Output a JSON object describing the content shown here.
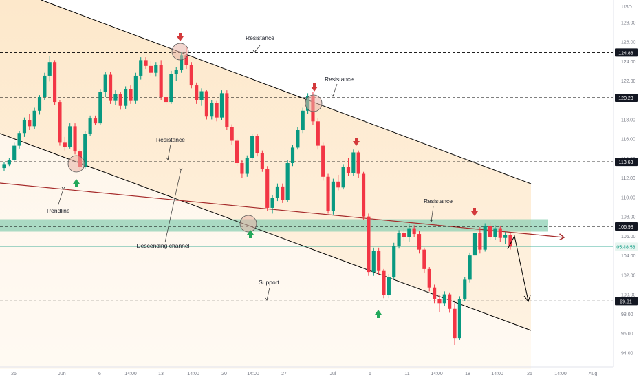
{
  "chart_data": {
    "type": "candlestick",
    "currency": "USD",
    "y_ticks": [
      94,
      96,
      98,
      100,
      102,
      104,
      106,
      108,
      110,
      112,
      114,
      116,
      118,
      120,
      122,
      124,
      126,
      128
    ],
    "x_ticks": [
      "26",
      "Jun",
      "6",
      "14:00",
      "13",
      "14:00",
      "20",
      "14:00",
      "27",
      "Jul",
      "6",
      "11",
      "14:00",
      "18",
      "14:00",
      "25",
      "14:00",
      "Aug"
    ],
    "price_tags": [
      {
        "label": "124.88",
        "value": 124.88,
        "style": "dark"
      },
      {
        "label": "120.23",
        "value": 120.23,
        "style": "dark"
      },
      {
        "label": "113.63",
        "value": 113.63,
        "style": "dark"
      },
      {
        "label": "106.98",
        "value": 106.98,
        "style": "dark"
      },
      {
        "label": "99.31",
        "value": 99.31,
        "style": "dark"
      },
      {
        "label": "05:48:58",
        "value": 104.9,
        "style": "last"
      }
    ],
    "horizontal_levels": [
      124.88,
      120.23,
      113.63,
      106.98,
      99.31
    ],
    "annotations": [
      "Resistance",
      "Resistance",
      "Resistance",
      "Resistance",
      "Trendline",
      "Descending channel",
      "Support"
    ],
    "candles": [
      [
        113.0,
        113.6,
        112.7,
        113.4
      ],
      [
        113.4,
        114.0,
        113.2,
        113.8
      ],
      [
        113.8,
        115.6,
        113.6,
        115.3
      ],
      [
        115.3,
        116.8,
        115.0,
        116.6
      ],
      [
        116.6,
        118.2,
        116.2,
        117.9
      ],
      [
        117.9,
        118.6,
        116.9,
        117.3
      ],
      [
        117.3,
        119.2,
        117.0,
        118.9
      ],
      [
        118.9,
        120.5,
        118.5,
        120.3
      ],
      [
        120.3,
        122.8,
        120.0,
        122.5
      ],
      [
        122.5,
        124.5,
        121.9,
        123.9
      ],
      [
        123.9,
        124.1,
        119.5,
        119.8
      ],
      [
        119.8,
        120.0,
        115.3,
        115.6
      ],
      [
        115.6,
        116.2,
        114.8,
        115.2
      ],
      [
        115.2,
        117.6,
        115.0,
        117.3
      ],
      [
        117.3,
        117.6,
        114.4,
        114.7
      ],
      [
        114.7,
        114.9,
        112.6,
        113.1
      ],
      [
        113.1,
        116.8,
        112.9,
        116.5
      ],
      [
        116.5,
        118.4,
        116.3,
        118.1
      ],
      [
        118.1,
        118.4,
        117.4,
        117.6
      ],
      [
        117.6,
        121.1,
        117.4,
        120.8
      ],
      [
        120.8,
        122.9,
        120.3,
        122.6
      ],
      [
        122.6,
        122.9,
        119.6,
        119.9
      ],
      [
        119.9,
        121.0,
        119.5,
        120.6
      ],
      [
        120.6,
        120.8,
        119.0,
        119.4
      ],
      [
        119.4,
        121.4,
        119.1,
        121.1
      ],
      [
        121.1,
        121.5,
        119.6,
        119.9
      ],
      [
        119.9,
        122.8,
        119.6,
        122.5
      ],
      [
        122.5,
        124.4,
        122.1,
        124.1
      ],
      [
        124.1,
        124.4,
        123.2,
        123.5
      ],
      [
        123.5,
        124.0,
        122.5,
        122.8
      ],
      [
        122.8,
        123.9,
        122.4,
        123.6
      ],
      [
        123.6,
        124.1,
        120.0,
        120.3
      ],
      [
        120.3,
        120.6,
        119.5,
        119.8
      ],
      [
        119.8,
        123.0,
        119.6,
        122.7
      ],
      [
        122.7,
        123.4,
        122.0,
        123.1
      ],
      [
        123.1,
        124.9,
        122.8,
        124.6
      ],
      [
        124.6,
        125.4,
        123.2,
        123.6
      ],
      [
        123.6,
        123.9,
        121.2,
        121.5
      ],
      [
        121.5,
        121.8,
        119.6,
        120.0
      ],
      [
        120.0,
        121.2,
        119.4,
        120.9
      ],
      [
        120.9,
        121.0,
        118.0,
        118.3
      ],
      [
        118.3,
        120.0,
        118.0,
        119.7
      ],
      [
        119.7,
        119.9,
        117.8,
        118.2
      ],
      [
        118.2,
        121.0,
        117.9,
        120.7
      ],
      [
        120.7,
        121.0,
        116.9,
        117.2
      ],
      [
        117.2,
        117.5,
        115.4,
        115.8
      ],
      [
        115.8,
        116.0,
        113.2,
        113.5
      ],
      [
        113.5,
        113.8,
        112.0,
        112.4
      ],
      [
        112.4,
        114.3,
        112.1,
        114.0
      ],
      [
        114.0,
        116.5,
        113.8,
        116.3
      ],
      [
        116.3,
        116.5,
        114.2,
        114.5
      ],
      [
        114.5,
        114.8,
        112.6,
        112.9
      ],
      [
        112.9,
        113.2,
        108.6,
        108.9
      ],
      [
        108.9,
        110.2,
        108.3,
        109.9
      ],
      [
        109.9,
        111.4,
        109.6,
        111.1
      ],
      [
        111.1,
        111.4,
        109.4,
        109.7
      ],
      [
        109.7,
        113.8,
        109.5,
        113.5
      ],
      [
        113.5,
        115.4,
        113.2,
        115.1
      ],
      [
        115.1,
        117.2,
        114.9,
        116.9
      ],
      [
        116.9,
        119.2,
        116.6,
        118.9
      ],
      [
        118.9,
        120.7,
        118.6,
        120.4
      ],
      [
        120.4,
        120.8,
        117.4,
        117.8
      ],
      [
        117.8,
        118.1,
        114.9,
        115.3
      ],
      [
        115.3,
        115.6,
        111.7,
        112.1
      ],
      [
        112.1,
        112.4,
        108.3,
        108.6
      ],
      [
        108.6,
        111.9,
        108.2,
        111.6
      ],
      [
        111.6,
        112.3,
        110.7,
        111.0
      ],
      [
        111.0,
        113.4,
        110.8,
        113.1
      ],
      [
        113.1,
        114.0,
        112.2,
        112.5
      ],
      [
        112.5,
        114.9,
        112.2,
        114.6
      ],
      [
        114.6,
        114.8,
        112.0,
        112.4
      ],
      [
        112.4,
        112.6,
        107.7,
        108.0
      ],
      [
        108.0,
        108.3,
        101.9,
        102.3
      ],
      [
        102.3,
        104.8,
        101.9,
        104.5
      ],
      [
        104.5,
        104.8,
        102.0,
        102.4
      ],
      [
        102.4,
        102.6,
        99.6,
        99.9
      ],
      [
        99.9,
        102.1,
        99.6,
        101.8
      ],
      [
        101.8,
        105.3,
        101.6,
        105.0
      ],
      [
        105.0,
        106.6,
        104.7,
        106.3
      ],
      [
        106.3,
        107.3,
        105.5,
        105.9
      ],
      [
        105.9,
        107.2,
        105.4,
        106.8
      ],
      [
        106.8,
        107.1,
        105.9,
        106.2
      ],
      [
        106.2,
        106.5,
        104.2,
        104.6
      ],
      [
        104.6,
        104.8,
        102.2,
        102.6
      ],
      [
        102.6,
        102.8,
        100.3,
        100.7
      ],
      [
        100.7,
        101.0,
        99.1,
        99.5
      ],
      [
        99.5,
        99.9,
        98.2,
        99.1
      ],
      [
        99.1,
        100.3,
        98.8,
        100.0
      ],
      [
        100.0,
        100.2,
        98.1,
        98.5
      ],
      [
        98.5,
        99.1,
        94.8,
        95.5
      ],
      [
        95.5,
        99.8,
        95.3,
        99.5
      ],
      [
        99.5,
        101.8,
        99.3,
        101.5
      ],
      [
        101.5,
        104.3,
        101.2,
        104.0
      ],
      [
        104.0,
        106.6,
        103.8,
        106.3
      ],
      [
        106.3,
        106.9,
        104.2,
        104.6
      ],
      [
        104.6,
        107.3,
        104.4,
        107.0
      ],
      [
        107.0,
        107.4,
        105.6,
        105.9
      ],
      [
        105.9,
        107.1,
        105.6,
        106.8
      ],
      [
        106.8,
        107.0,
        105.4,
        105.8
      ],
      [
        105.8,
        106.4,
        105.2,
        106.1
      ],
      [
        106.1,
        106.3,
        104.6,
        104.9
      ]
    ]
  },
  "colors": {
    "up": "#089981",
    "down": "#f23645",
    "background": "#ffffff",
    "channel_fill": "#fce5c4",
    "support_zone": "#8ed0b4",
    "trendline": "#a52a2a",
    "projection": "#000000"
  }
}
